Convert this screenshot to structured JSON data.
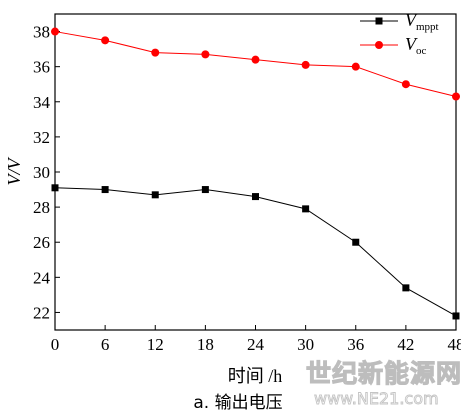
{
  "chart_data": {
    "type": "line",
    "x": [
      0,
      6,
      12,
      18,
      24,
      30,
      36,
      42,
      48
    ],
    "series": [
      {
        "name": "V",
        "subscript": "mppt",
        "color": "#000000",
        "marker": "square",
        "values": [
          29.1,
          29.0,
          28.7,
          29.0,
          28.6,
          27.9,
          26.0,
          23.4,
          21.8
        ]
      },
      {
        "name": "V",
        "subscript": "oc",
        "color": "#ff0000",
        "marker": "circle",
        "values": [
          38.0,
          37.5,
          36.8,
          36.7,
          36.4,
          36.1,
          36.0,
          35.0,
          34.3
        ]
      }
    ],
    "xlabel": "时间 /h",
    "ylabel": "V/V",
    "xlim": [
      0,
      48
    ],
    "ylim": [
      21,
      39
    ],
    "xticks": [
      "0",
      "6",
      "12",
      "18",
      "24",
      "30",
      "36",
      "42",
      "48"
    ],
    "yticks": [
      "22",
      "24",
      "26",
      "28",
      "30",
      "32",
      "34",
      "36",
      "38"
    ],
    "grid": false,
    "legend_position": "top-right",
    "caption": "a. 输出电压"
  },
  "watermark": {
    "line1": "世纪新能源网",
    "line2": "www.NE21.com"
  }
}
